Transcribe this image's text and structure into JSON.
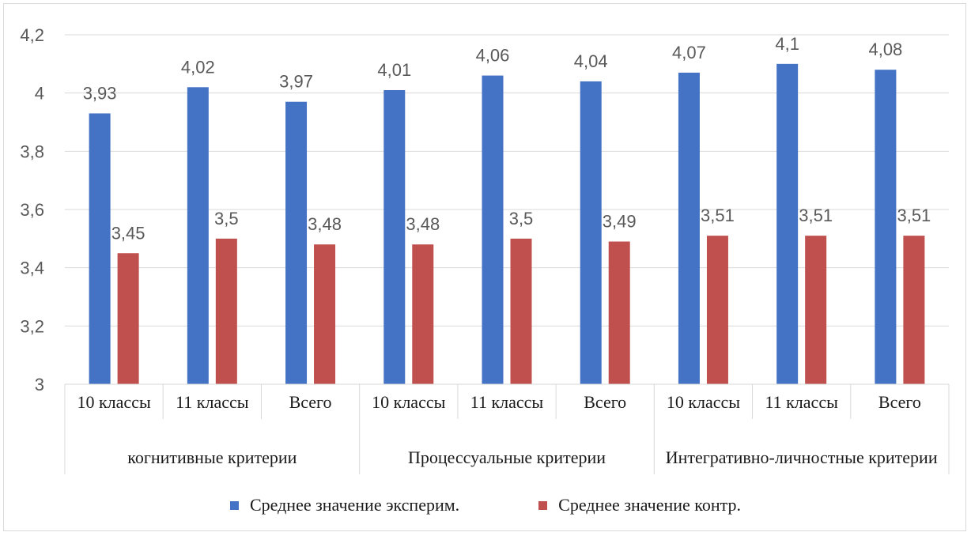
{
  "chart_data": {
    "type": "bar",
    "ylim": [
      3,
      4.2
    ],
    "yticks": [
      "3",
      "3,2",
      "3,4",
      "3,6",
      "3,8",
      "4",
      "4,2"
    ],
    "ytick_values": [
      3,
      3.2,
      3.4,
      3.6,
      3.8,
      4,
      4.2
    ],
    "grid": true,
    "legend_position": "bottom",
    "groups": [
      {
        "label": "когнитивные критерии",
        "categories": [
          "10 классы",
          "11 классы",
          "Всего"
        ]
      },
      {
        "label": "Процессуальные критерии",
        "categories": [
          "10 классы",
          "11 классы",
          "Всего"
        ]
      },
      {
        "label": "Интегративно-личностные критерии",
        "categories": [
          "10 классы",
          "11 классы",
          "Всего"
        ]
      }
    ],
    "series": [
      {
        "name": "Среднее значение эксперим.",
        "color": "#4472c4",
        "values": [
          3.93,
          4.02,
          3.97,
          4.01,
          4.06,
          4.04,
          4.07,
          4.1,
          4.08
        ],
        "labels": [
          "3,93",
          "4,02",
          "3,97",
          "4,01",
          "4,06",
          "4,04",
          "4,07",
          "4,1",
          "4,08"
        ]
      },
      {
        "name": "Среднее значение контр.",
        "color": "#c0504d",
        "values": [
          3.45,
          3.5,
          3.48,
          3.48,
          3.5,
          3.49,
          3.51,
          3.51,
          3.51
        ],
        "labels": [
          "3,45",
          "3,5",
          "3,48",
          "3,48",
          "3,5",
          "3,49",
          "3,51",
          "3,51",
          "3,51"
        ]
      }
    ]
  }
}
